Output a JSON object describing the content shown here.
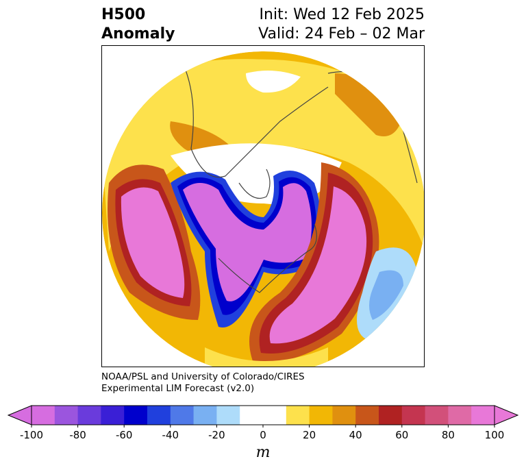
{
  "title": {
    "left_line1": "H500",
    "left_line2": "Anomaly",
    "right_line1": "Init: Wed 12 Feb 2025",
    "right_line2": "Valid: 24 Feb – 02 Mar"
  },
  "credit": {
    "line1": "NOAA/PSL and University of Colorado/CIRES",
    "line2": "Experimental LIM Forecast (v2.0)"
  },
  "colorbar": {
    "label": "m",
    "ticks": [
      "-100",
      "-80",
      "-60",
      "-40",
      "-20",
      "0",
      "20",
      "40",
      "60",
      "80",
      "100"
    ],
    "min": -100,
    "max": 100,
    "step": 10,
    "extend": "both",
    "colors": [
      "#d66de0",
      "#9b55de",
      "#6a3bdc",
      "#3a1fd6",
      "#0000cc",
      "#2040dd",
      "#4f79e8",
      "#79b0f2",
      "#aedcfa",
      "#ffffff",
      "#ffffff",
      "#fde14c",
      "#f2b705",
      "#e0900f",
      "#c8561a",
      "#b02222",
      "#c43550",
      "#d2507a",
      "#df6aa6",
      "#e878d8"
    ],
    "extend_low_color": "#d66de0",
    "extend_high_color": "#e878d8"
  },
  "map": {
    "projection": "north polar stereographic",
    "field": "500 hPa geopotential height anomaly"
  }
}
